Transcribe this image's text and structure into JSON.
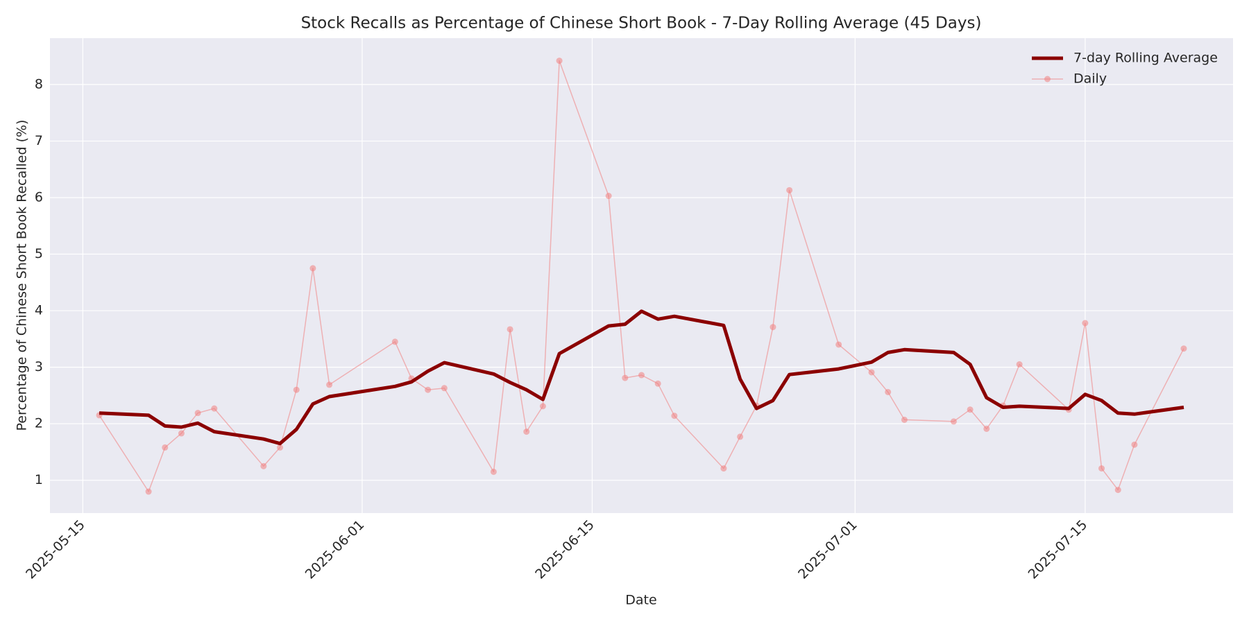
{
  "chart_data": {
    "type": "line",
    "title": "Stock Recalls as Percentage of Chinese Short Book - 7-Day Rolling Average (45 Days)",
    "xlabel": "Date",
    "ylabel": "Percentage of Chinese Short Book Recalled (%)",
    "x": [
      "2025-05-16",
      "2025-05-19",
      "2025-05-20",
      "2025-05-21",
      "2025-05-22",
      "2025-05-23",
      "2025-05-26",
      "2025-05-27",
      "2025-05-28",
      "2025-05-29",
      "2025-05-30",
      "2025-06-03",
      "2025-06-04",
      "2025-06-05",
      "2025-06-06",
      "2025-06-09",
      "2025-06-10",
      "2025-06-11",
      "2025-06-12",
      "2025-06-13",
      "2025-06-16",
      "2025-06-17",
      "2025-06-18",
      "2025-06-19",
      "2025-06-20",
      "2025-06-23",
      "2025-06-24",
      "2025-06-25",
      "2025-06-26",
      "2025-06-27",
      "2025-06-30",
      "2025-07-02",
      "2025-07-03",
      "2025-07-04",
      "2025-07-07",
      "2025-07-08",
      "2025-07-09",
      "2025-07-10",
      "2025-07-11",
      "2025-07-14",
      "2025-07-15",
      "2025-07-16",
      "2025-07-17",
      "2025-07-18",
      "2025-07-21"
    ],
    "series": [
      {
        "name": "7-day Rolling Average",
        "color": "#8b0000",
        "marker": false,
        "values": [
          2.19,
          2.15,
          1.96,
          1.94,
          2.01,
          1.86,
          1.73,
          1.65,
          1.9,
          2.35,
          2.48,
          2.66,
          2.74,
          2.93,
          3.08,
          2.88,
          2.73,
          2.6,
          2.43,
          3.24,
          3.73,
          3.76,
          3.99,
          3.85,
          3.9,
          3.74,
          2.79,
          2.27,
          2.41,
          2.87,
          2.97,
          3.09,
          3.26,
          3.31,
          3.26,
          3.05,
          2.46,
          2.29,
          2.31,
          2.27,
          2.52,
          2.41,
          2.19,
          2.17,
          2.29
        ]
      },
      {
        "name": "Daily",
        "color": "#f08080",
        "marker": true,
        "values": [
          2.15,
          0.8,
          1.58,
          1.83,
          2.19,
          2.27,
          1.25,
          1.58,
          2.6,
          4.75,
          2.69,
          3.45,
          2.8,
          2.6,
          2.63,
          1.15,
          3.67,
          1.86,
          2.31,
          8.42,
          6.03,
          2.81,
          2.86,
          2.71,
          2.14,
          1.21,
          1.77,
          2.32,
          3.71,
          6.13,
          3.4,
          2.91,
          2.56,
          2.07,
          2.04,
          2.25,
          1.91,
          2.32,
          3.05,
          2.25,
          3.78,
          1.21,
          0.83,
          1.63,
          3.33
        ]
      }
    ],
    "xlim": [
      "2025-05-13",
      "2025-07-24"
    ],
    "xticks": [
      "2025-05-15",
      "2025-06-01",
      "2025-06-15",
      "2025-07-01",
      "2025-07-15"
    ],
    "ylim": [
      0.42,
      8.82
    ],
    "yticks": [
      1,
      2,
      3,
      4,
      5,
      6,
      7,
      8
    ],
    "grid": true,
    "legend": "upper right"
  }
}
